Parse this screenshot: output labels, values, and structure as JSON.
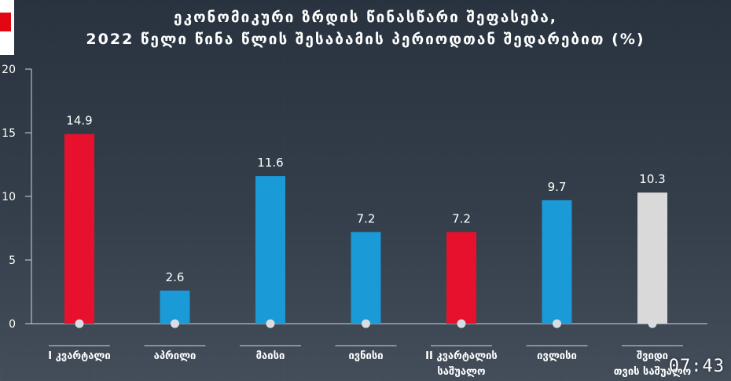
{
  "title_line1": "ეკონომიკური ზრდის წინასწარი შეფასება,",
  "title_line2": "2022 წელი წინა წლის შესაბამის პერიოდთან შედარებით (%)",
  "clock": "07:43",
  "colors": {
    "red": "#e8112d",
    "blue": "#1a9ad6",
    "grey": "#d9d9d9"
  },
  "chart_data": {
    "type": "bar",
    "title": "ეკონომიკური ზრდის წინასწარი შეფასება, 2022 წელი წინა წლის შესაბამის პერიოდთან შედარებით (%)",
    "xlabel": "",
    "ylabel": "",
    "ylim": [
      0,
      20
    ],
    "yticks": [
      0,
      5,
      10,
      15,
      20
    ],
    "grid": false,
    "categories": [
      [
        "I კვარტალი"
      ],
      [
        "აპრილი"
      ],
      [
        "მაისი"
      ],
      [
        "ივნისი"
      ],
      [
        "II კვარტალის",
        "საშუალო"
      ],
      [
        "ივლისი"
      ],
      [
        "შვიდი",
        "თვის საშუალო"
      ]
    ],
    "values": [
      14.9,
      2.6,
      11.6,
      7.2,
      7.2,
      9.7,
      10.3
    ],
    "value_labels": [
      "14.9",
      "2.6",
      "11.6",
      "7.2",
      "7.2",
      "9.7",
      "10.3"
    ],
    "bar_colors": [
      "red",
      "blue",
      "blue",
      "blue",
      "red",
      "blue",
      "grey"
    ]
  }
}
